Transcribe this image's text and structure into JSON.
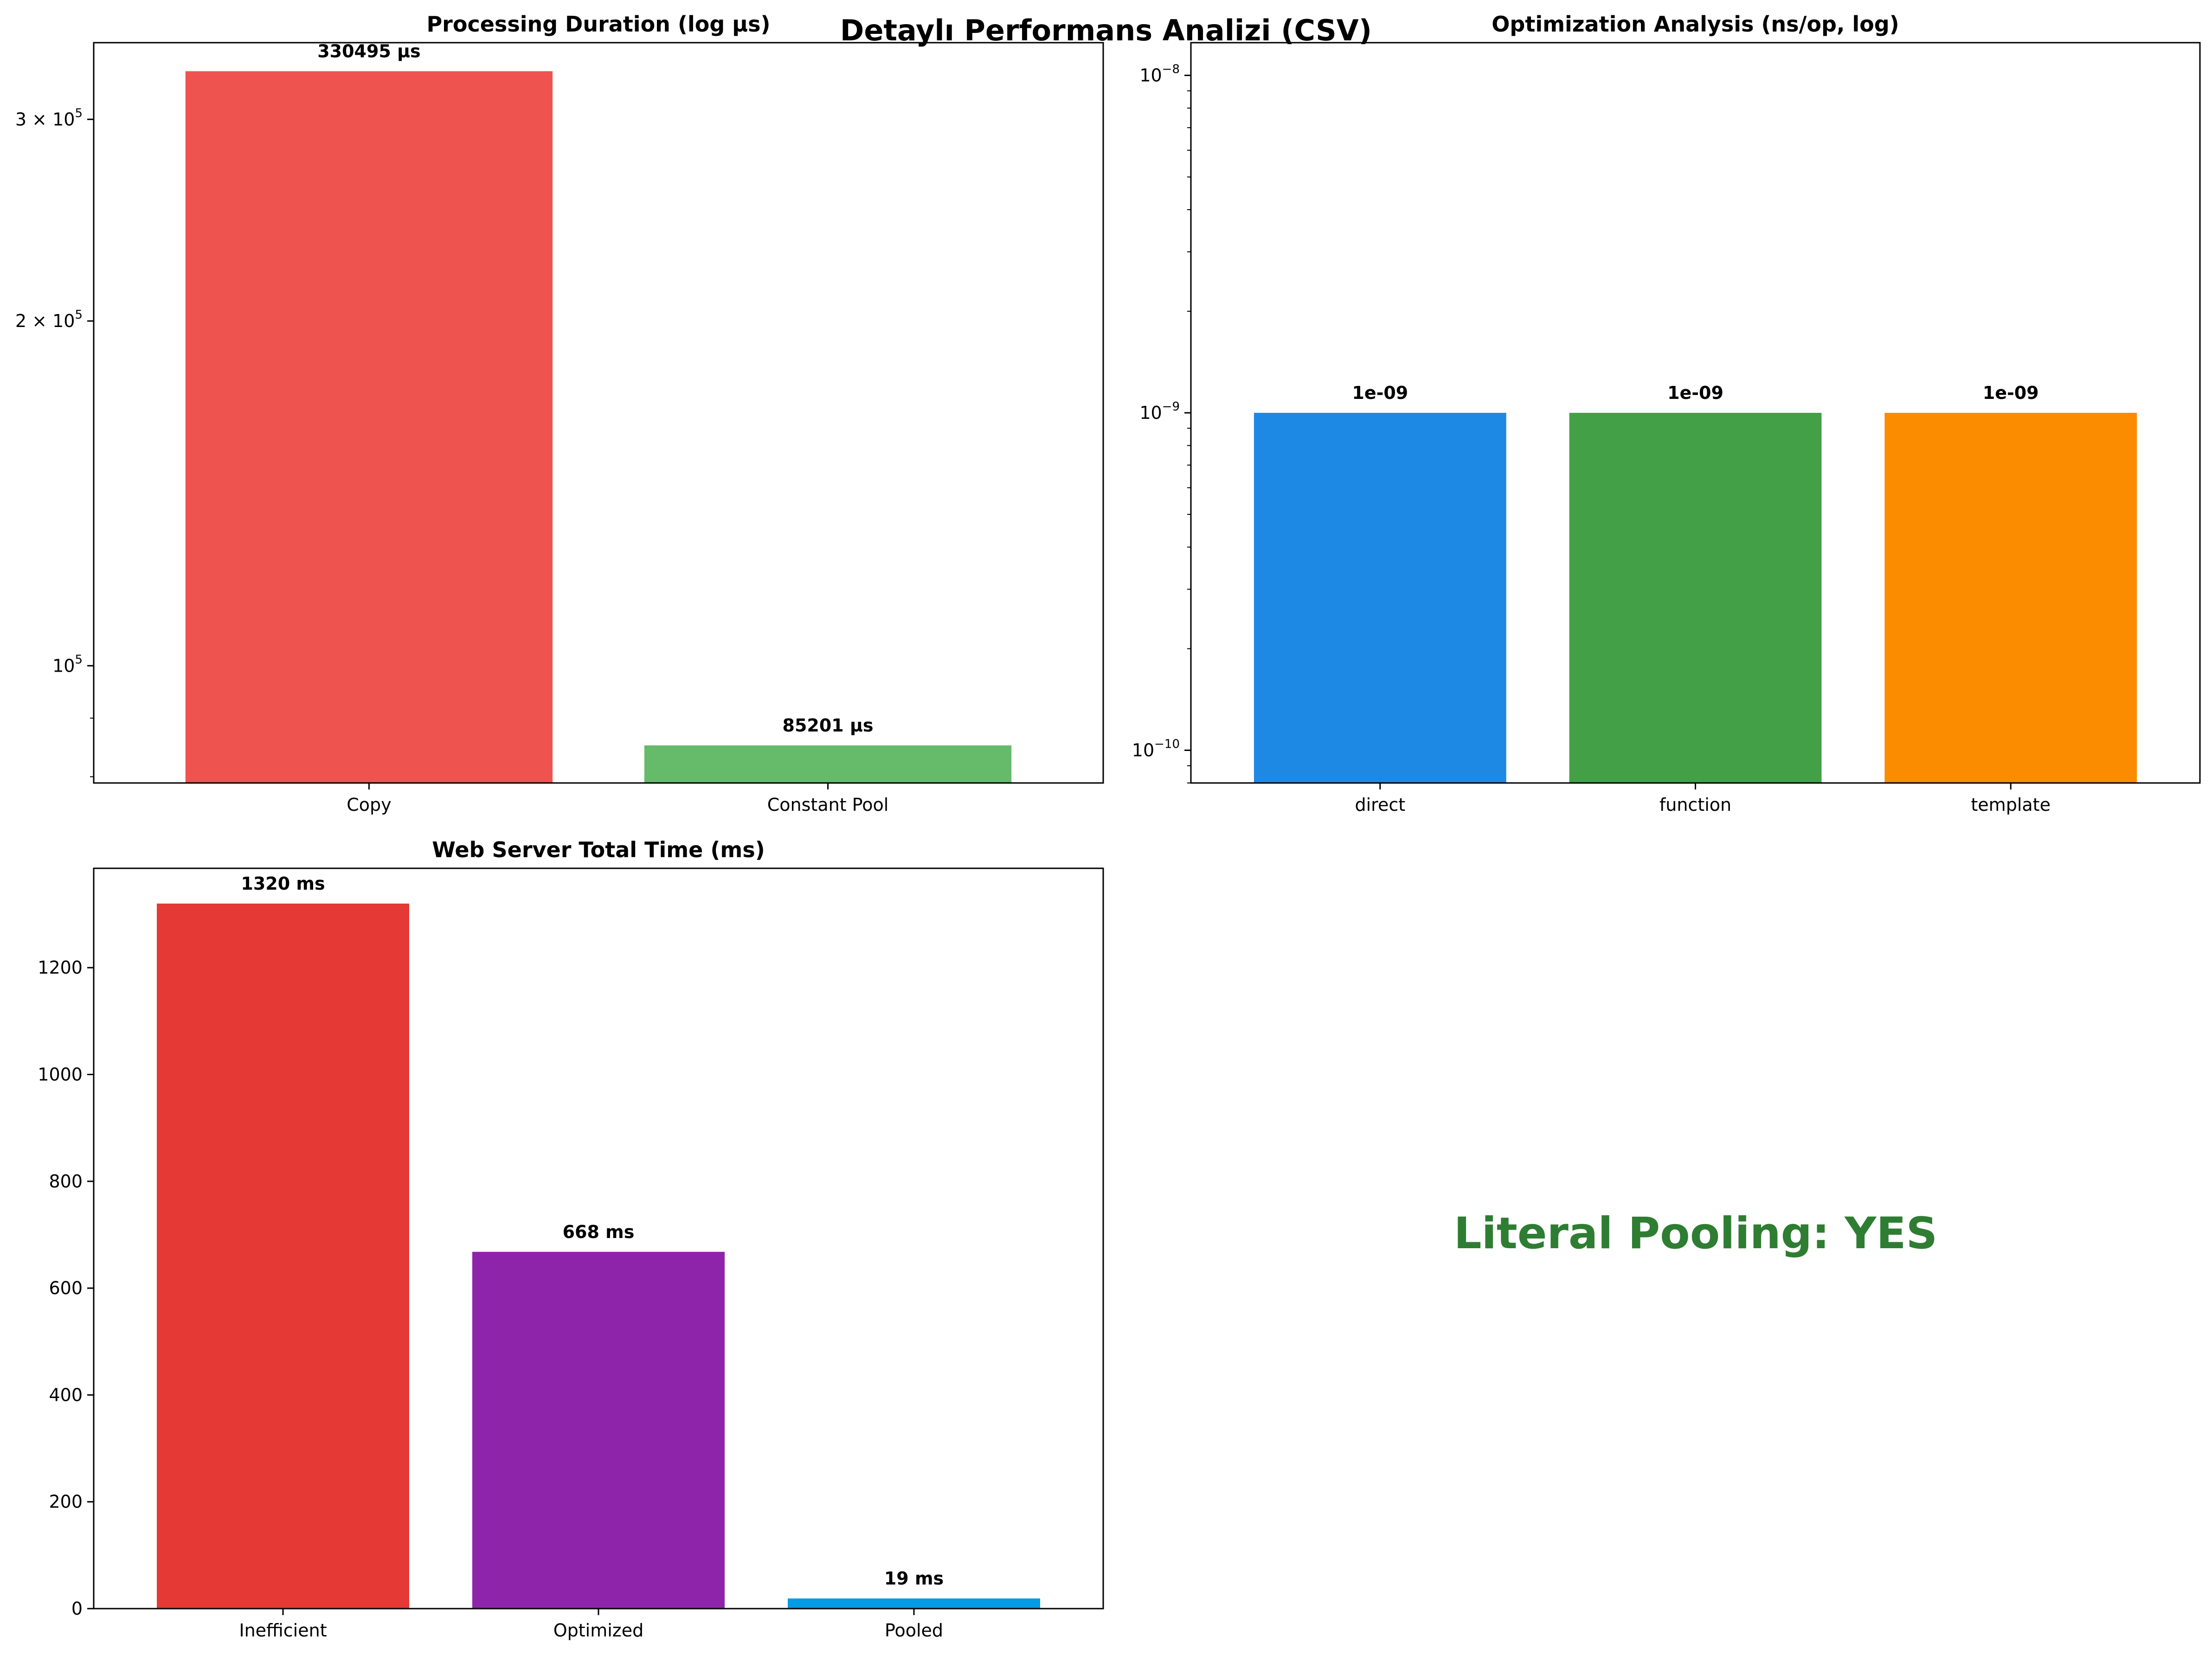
{
  "figure": {
    "suptitle": "Detaylı Performans Analizi (CSV)"
  },
  "chart_data": [
    {
      "type": "bar",
      "title": "Processing Duration (log µs)",
      "xlabel": "",
      "ylabel": "",
      "yscale": "log",
      "ylim": [
        79000,
        350000
      ],
      "categories": [
        "Copy",
        "Constant Pool"
      ],
      "values": [
        330495,
        85201
      ],
      "colors": [
        "#ef5350",
        "#66bb6a"
      ],
      "data_labels": [
        "330495 µs",
        "85201 µs"
      ],
      "yticks": [
        {
          "value": 300000,
          "mantissa": "3 × 10",
          "exponent": "5"
        },
        {
          "value": 200000,
          "mantissa": "2 × 10",
          "exponent": "5"
        },
        {
          "value": 100000,
          "mantissa": "10",
          "exponent": "5"
        }
      ],
      "grid": false,
      "legend": "none"
    },
    {
      "type": "bar",
      "title": "Optimization Analysis (ns/op, log)",
      "xlabel": "",
      "ylabel": "",
      "yscale": "log",
      "ylim": [
        8e-11,
        1.25e-08
      ],
      "categories": [
        "direct",
        "function",
        "template"
      ],
      "values": [
        1e-09,
        1e-09,
        1e-09
      ],
      "colors": [
        "#1e88e5",
        "#43a047",
        "#fb8c00"
      ],
      "data_labels": [
        "1e-09",
        "1e-09",
        "1e-09"
      ],
      "yticks": [
        {
          "value": 1e-08,
          "mantissa": "10",
          "exponent": "−8"
        },
        {
          "value": 1e-09,
          "mantissa": "10",
          "exponent": "−9"
        },
        {
          "value": 1e-10,
          "mantissa": "10",
          "exponent": "−10"
        }
      ],
      "grid": false,
      "legend": "none"
    },
    {
      "type": "bar",
      "title": "Web Server Total Time (ms)",
      "xlabel": "",
      "ylabel": "",
      "yscale": "linear",
      "ylim": [
        0,
        1386
      ],
      "categories": [
        "Inefficient",
        "Optimized",
        "Pooled"
      ],
      "values": [
        1320,
        668,
        19
      ],
      "colors": [
        "#e53935",
        "#8e24aa",
        "#039be5"
      ],
      "data_labels": [
        "1320 ms",
        "668 ms",
        "19 ms"
      ],
      "yticks": [
        {
          "value": 0,
          "label": "0"
        },
        {
          "value": 200,
          "label": "200"
        },
        {
          "value": 400,
          "label": "400"
        },
        {
          "value": 600,
          "label": "600"
        },
        {
          "value": 800,
          "label": "800"
        },
        {
          "value": 1000,
          "label": "1000"
        },
        {
          "value": 1200,
          "label": "1200"
        }
      ],
      "grid": false,
      "legend": "none"
    }
  ],
  "status_panel": {
    "text": "Literal Pooling: YES",
    "color": "#2e7d32"
  }
}
